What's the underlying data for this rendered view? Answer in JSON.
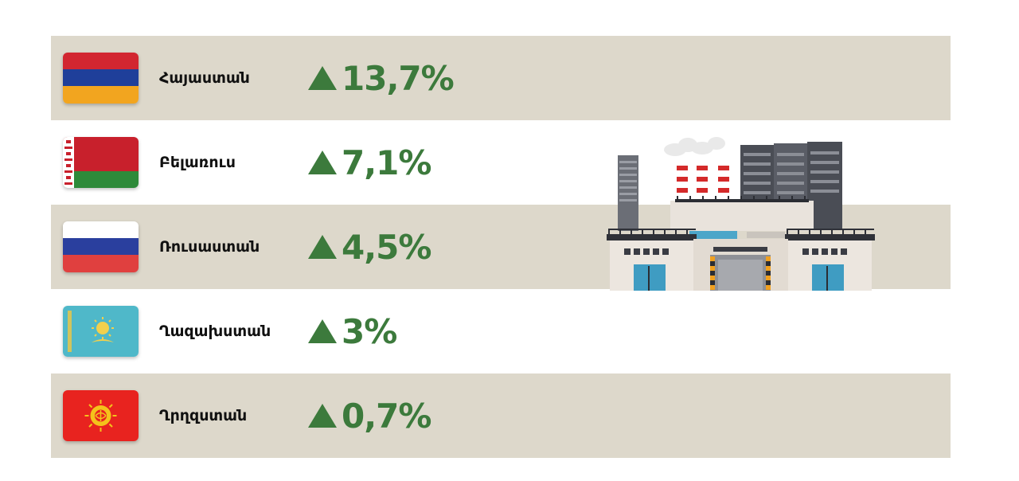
{
  "chart_data": {
    "type": "table",
    "rows": [
      {
        "country": "Հայաստան",
        "flag": "armenia-flag",
        "change": "13,7%",
        "value": 13.7,
        "direction": "up"
      },
      {
        "country": "Բելառուս",
        "flag": "belarus-flag",
        "change": "7,1%",
        "value": 7.1,
        "direction": "up"
      },
      {
        "country": "Ռուսաստան",
        "flag": "russia-flag",
        "change": "4,5%",
        "value": 4.5,
        "direction": "up"
      },
      {
        "country": "Ղազախստան",
        "flag": "kazakhstan-flag",
        "change": "3%",
        "value": 3,
        "direction": "up"
      },
      {
        "country": "Ղրղզստան",
        "flag": "kyrgyzstan-flag",
        "change": "0,7%",
        "value": 0.7,
        "direction": "up"
      }
    ]
  },
  "colors": {
    "row_shaded": "#ddd8cb",
    "row_plain": "#ffffff",
    "increase": "#3c7a3c"
  },
  "icons": {
    "up_marker": "up-triangle-icon",
    "illustration": "factory-icon"
  }
}
